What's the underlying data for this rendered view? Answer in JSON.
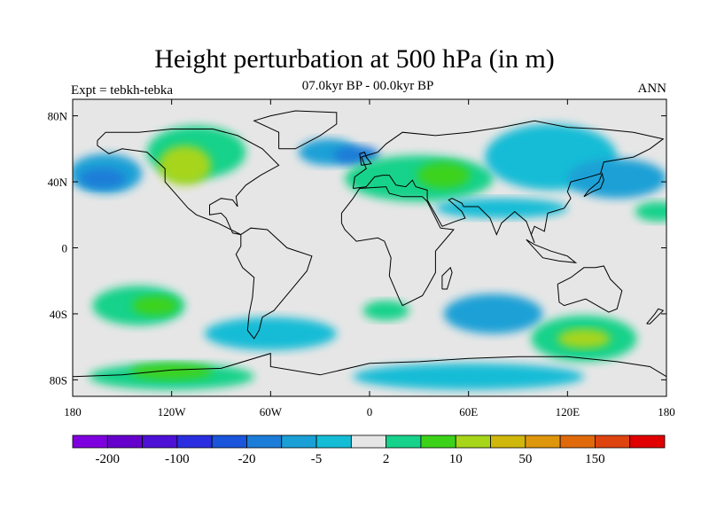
{
  "title": "Height perturbation at 500 hPa (in m)",
  "subtitle": "07.0kyr BP - 00.0kyr BP",
  "left_label": "Expt = tebkh-tebka",
  "right_label": "ANN",
  "map": {
    "projection": "cylindrical equidistant",
    "lon_range": [
      -180,
      180
    ],
    "lat_range": [
      -90,
      90
    ],
    "background_color": "#e6e6e6",
    "lat_ticks": [
      {
        "value": 80,
        "label": "80N"
      },
      {
        "value": 40,
        "label": "40N"
      },
      {
        "value": 0,
        "label": "0"
      },
      {
        "value": -40,
        "label": "40S"
      },
      {
        "value": -80,
        "label": "80S"
      }
    ],
    "lon_ticks": [
      {
        "value": -180,
        "label": "180"
      },
      {
        "value": -120,
        "label": "120W"
      },
      {
        "value": -60,
        "label": "60W"
      },
      {
        "value": 0,
        "label": "0"
      },
      {
        "value": 60,
        "label": "60E"
      },
      {
        "value": 120,
        "label": "120E"
      },
      {
        "value": 180,
        "label": "180"
      }
    ]
  },
  "colorbar": {
    "colors": [
      "#7f00df",
      "#6600cc",
      "#4d10d6",
      "#2a2ee0",
      "#1a55db",
      "#1b7dd8",
      "#1aa0d6",
      "#14bcd6",
      "#e6e6e6",
      "#17d28a",
      "#3cd21a",
      "#a6d51a",
      "#d0b70c",
      "#de960c",
      "#e06a0a",
      "#dd4410",
      "#e00000"
    ],
    "labels": [
      {
        "boundary": 1,
        "label": "-200"
      },
      {
        "boundary": 3,
        "label": "-100"
      },
      {
        "boundary": 5,
        "label": "-20"
      },
      {
        "boundary": 7,
        "label": "-5"
      },
      {
        "boundary": 9,
        "label": "2"
      },
      {
        "boundary": 11,
        "label": "10"
      },
      {
        "boundary": 13,
        "label": "50"
      },
      {
        "boundary": 15,
        "label": "150"
      }
    ]
  },
  "field_blobs": [
    {
      "name": "n-pacific-low",
      "lon": -160,
      "lat": 45,
      "rx": 22,
      "ry": 12,
      "color": "#1aa0d6"
    },
    {
      "name": "n-pacific-low-core",
      "lon": -162,
      "lat": 42,
      "rx": 14,
      "ry": 6,
      "color": "#1b7dd8"
    },
    {
      "name": "n-america-high",
      "lon": -105,
      "lat": 58,
      "rx": 30,
      "ry": 16,
      "color": "#17d28a"
    },
    {
      "name": "n-america-high-core",
      "lon": -112,
      "lat": 50,
      "rx": 16,
      "ry": 12,
      "color": "#a6d51a"
    },
    {
      "name": "n-atlantic-low",
      "lon": -25,
      "lat": 58,
      "rx": 18,
      "ry": 8,
      "color": "#1aa0d6"
    },
    {
      "name": "n-atlantic-low-core",
      "lon": -8,
      "lat": 56,
      "rx": 14,
      "ry": 6,
      "color": "#1b7dd8"
    },
    {
      "name": "eurasia-high",
      "lon": 30,
      "lat": 42,
      "rx": 45,
      "ry": 14,
      "color": "#17d28a"
    },
    {
      "name": "eurasia-high-core",
      "lon": 45,
      "lat": 44,
      "rx": 16,
      "ry": 8,
      "color": "#3cd21a"
    },
    {
      "name": "siberia-low",
      "lon": 110,
      "lat": 55,
      "rx": 40,
      "ry": 20,
      "color": "#14bcd6"
    },
    {
      "name": "n-pacific-west-low",
      "lon": 150,
      "lat": 42,
      "rx": 30,
      "ry": 12,
      "color": "#1aa0d6"
    },
    {
      "name": "w-pacific-high",
      "lon": 175,
      "lat": 22,
      "rx": 14,
      "ry": 6,
      "color": "#17d28a"
    },
    {
      "name": "tropics-band-low",
      "lon": 80,
      "lat": 24,
      "rx": 40,
      "ry": 6,
      "color": "#14bcd6"
    },
    {
      "name": "s-pacific-high",
      "lon": -140,
      "lat": -35,
      "rx": 28,
      "ry": 12,
      "color": "#17d28a"
    },
    {
      "name": "s-pacific-high-core",
      "lon": -130,
      "lat": -35,
      "rx": 14,
      "ry": 6,
      "color": "#3cd21a"
    },
    {
      "name": "s-ocean-low-west",
      "lon": -60,
      "lat": -52,
      "rx": 40,
      "ry": 10,
      "color": "#14bcd6"
    },
    {
      "name": "s-indian-low",
      "lon": 75,
      "lat": -40,
      "rx": 30,
      "ry": 12,
      "color": "#1aa0d6"
    },
    {
      "name": "s-atlantic-high",
      "lon": 10,
      "lat": -38,
      "rx": 14,
      "ry": 6,
      "color": "#17d28a"
    },
    {
      "name": "s-australia-high",
      "lon": 130,
      "lat": -55,
      "rx": 32,
      "ry": 14,
      "color": "#17d28a"
    },
    {
      "name": "s-australia-high-core",
      "lon": 130,
      "lat": -55,
      "rx": 16,
      "ry": 6,
      "color": "#a6d51a"
    },
    {
      "name": "antarctic-high",
      "lon": -120,
      "lat": -78,
      "rx": 50,
      "ry": 8,
      "color": "#17d28a"
    },
    {
      "name": "antarctic-high-core",
      "lon": -120,
      "lat": -75,
      "rx": 25,
      "ry": 5,
      "color": "#3cd21a"
    },
    {
      "name": "antarctic-low-east",
      "lon": 60,
      "lat": -78,
      "rx": 70,
      "ry": 8,
      "color": "#14bcd6"
    }
  ]
}
